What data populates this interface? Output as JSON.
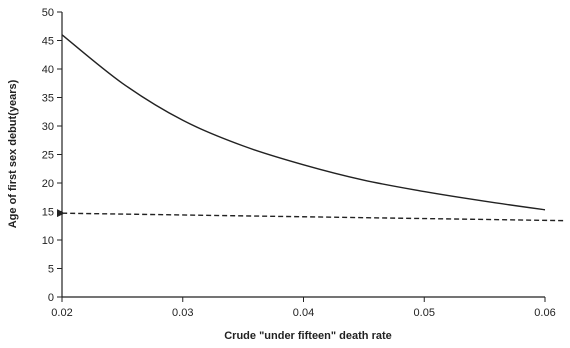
{
  "chart_data": {
    "type": "line",
    "xlabel": "Crude \"under fifteen\" death rate",
    "ylabel": "Age of first sex debut(years)",
    "xlim": [
      0.02,
      0.06
    ],
    "ylim": [
      0,
      50
    ],
    "xticks": [
      "0.02",
      "0.03",
      "0.04",
      "0.05",
      "0.06"
    ],
    "yticks": [
      "0",
      "5",
      "10",
      "15",
      "20",
      "25",
      "30",
      "35",
      "40",
      "45",
      "50"
    ],
    "grid": false,
    "series": [
      {
        "style": "solid",
        "x": [
          0.02,
          0.025,
          0.03,
          0.035,
          0.04,
          0.045,
          0.05,
          0.055,
          0.06
        ],
        "y": [
          46,
          37.5,
          31,
          26.5,
          23.2,
          20.5,
          18.5,
          16.8,
          15.3
        ]
      },
      {
        "style": "dashed",
        "arrow_at_start": true,
        "x": [
          0.02,
          0.0615
        ],
        "y": [
          14.7,
          13.4
        ]
      }
    ]
  }
}
